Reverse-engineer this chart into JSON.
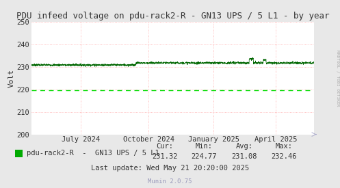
{
  "title": "PDU infeed voltage on pdu-rack2-R - GN13 UPS / 5 L1 - by year",
  "ylabel": "Volt",
  "bg_color": "#e8e8e8",
  "plot_bg_color": "#ffffff",
  "grid_color_red": "#ffaaaa",
  "grid_color_blue": "#aaaaff",
  "ylim": [
    200,
    250
  ],
  "yticks": [
    200,
    210,
    220,
    230,
    240,
    250
  ],
  "line_color_bright": "#00dd00",
  "line_color_dark": "#006600",
  "dashed_line_value": 219.5,
  "x_tick_labels": [
    "July 2024",
    "October 2024",
    "January 2025",
    "April 2025"
  ],
  "x_tick_positions": [
    0.175,
    0.415,
    0.645,
    0.865
  ],
  "legend_label": "pdu-rack2-R  -  GN13 UPS / 5 L1",
  "legend_color": "#00aa00",
  "cur_val": "231.32",
  "min_val": "224.77",
  "avg_val": "231.08",
  "max_val": "232.46",
  "last_update": "Last update: Wed May 21 20:20:00 2025",
  "munin_version": "Munin 2.0.75",
  "rrdtool_label": "RRDTOOL / TOBI OETIKER",
  "title_fontsize": 9,
  "axis_fontsize": 7.5,
  "legend_fontsize": 7.5,
  "stats_fontsize": 7.5
}
